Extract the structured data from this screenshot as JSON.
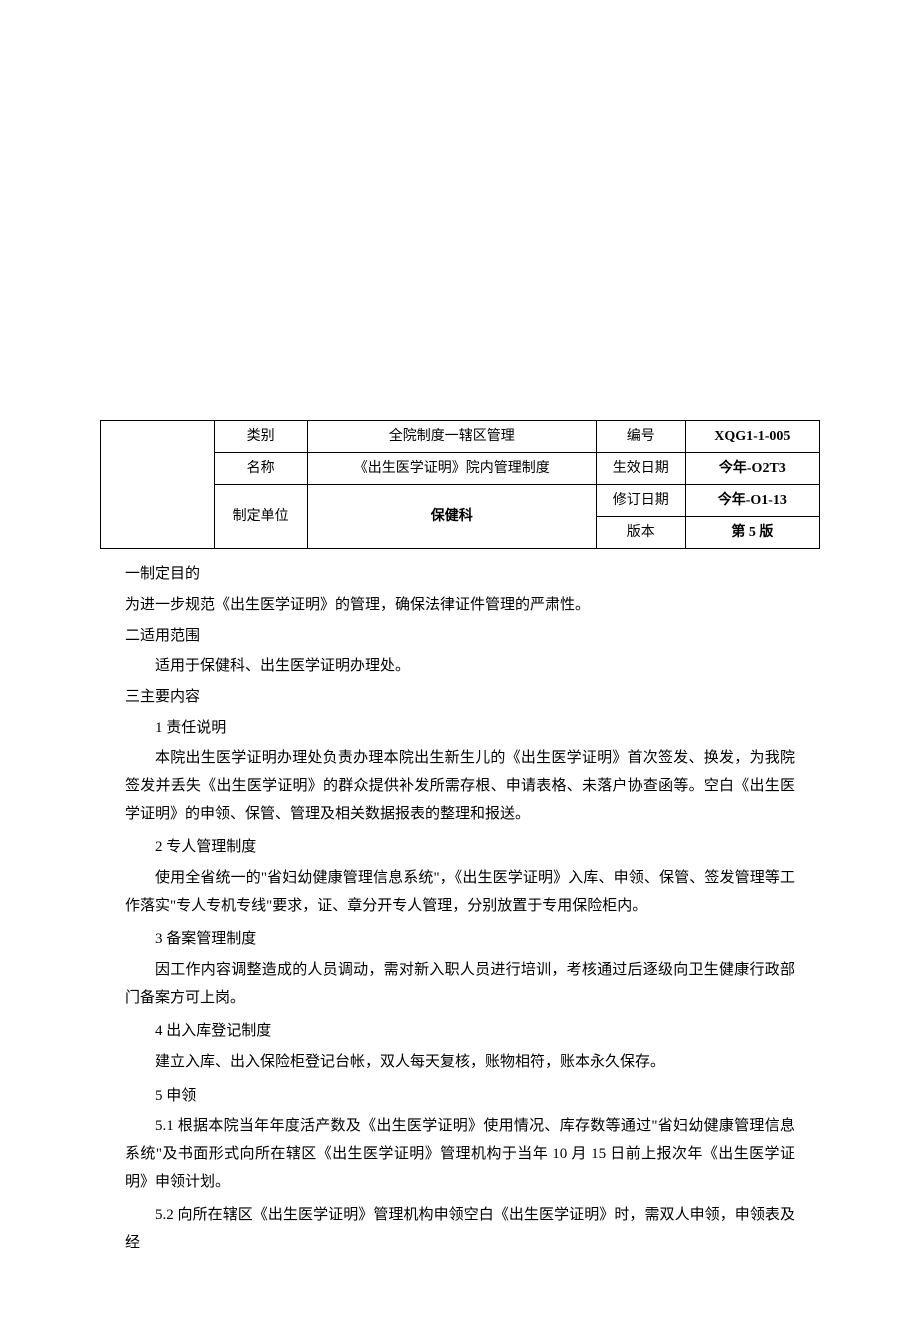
{
  "table": {
    "row1": {
      "label": "类别",
      "value": "全院制度一辖区管理",
      "label2": "编号",
      "value2": "XQG1-1-005"
    },
    "row2": {
      "label": "名称",
      "value": "《出生医学证明》院内管理制度",
      "label2": "生效日期",
      "value2": "今年-O2T3"
    },
    "row3": {
      "label": "制定单位",
      "value": "保健科",
      "label2": "修订日期",
      "value2": "今年-O1-13"
    },
    "row4": {
      "label2": "版本",
      "value2": "第 5 版"
    }
  },
  "sections": {
    "s1_title": "一制定目的",
    "s1_body": "为进一步规范《出生医学证明》的管理，确保法律证件管理的严肃性。",
    "s2_title": "二适用范围",
    "s2_body": "适用于保健科、出生医学证明办理处。",
    "s3_title": "三主要内容",
    "h1": "1 责任说明",
    "p1": "本院出生医学证明办理处负责办理本院出生新生儿的《出生医学证明》首次签发、换发，为我院签发并丢失《出生医学证明》的群众提供补发所需存根、申请表格、未落户协查函等。空白《出生医学证明》的申领、保管、管理及相关数据报表的整理和报送。",
    "h2": "2 专人管理制度",
    "p2": "使用全省统一的\"省妇幼健康管理信息系统\"，《出生医学证明》入库、申领、保管、签发管理等工作落实\"专人专机专线\"要求，证、章分开专人管理，分别放置于专用保险柜内。",
    "h3": "3 备案管理制度",
    "p3": "因工作内容调整造成的人员调动，需对新入职人员进行培训，考核通过后逐级向卫生健康行政部门备案方可上岗。",
    "h4": "4 出入库登记制度",
    "p4": "建立入库、出入保险柜登记台帐，双人每天复核，账物相符，账本永久保存。",
    "h5": "5 申领",
    "p5_1": "5.1 根据本院当年年度活产数及《出生医学证明》使用情况、库存数等通过\"省妇幼健康管理信息系统\"及书面形式向所在辖区《出生医学证明》管理机构于当年 10 月 15 日前上报次年《出生医学证明》申领计划。",
    "p5_2": "5.2 向所在辖区《出生医学证明》管理机构申领空白《出生医学证明》时，需双人申领，申领表及经"
  },
  "style": {
    "background_color": "#ffffff",
    "text_color": "#000000",
    "border_color": "#000000",
    "body_fontsize": 15,
    "table_fontsize": 14
  }
}
